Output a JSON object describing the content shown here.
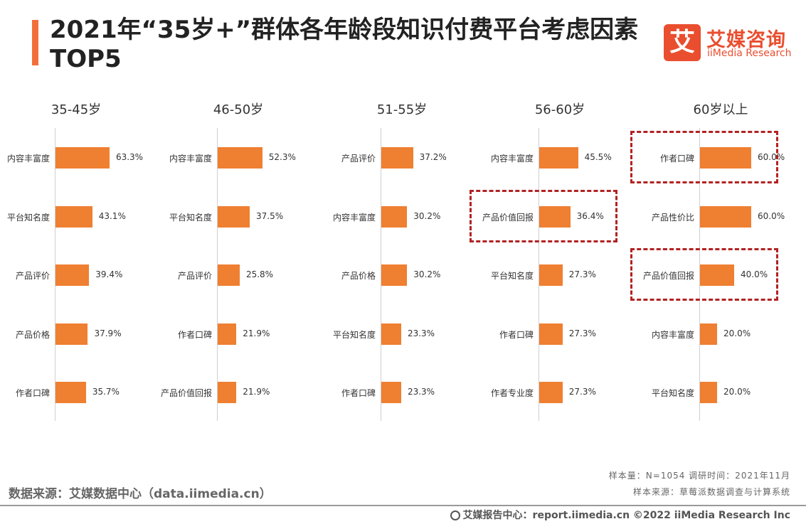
{
  "title": "2021年“35岁+”群体各年龄段知识付费平台考虑因素TOP5",
  "logo": {
    "mark": "艾",
    "cn": "艾媒咨询",
    "en": "iiMedia Research"
  },
  "chart_data": {
    "type": "bar",
    "unit": "%",
    "bar_color": "#ef7f31",
    "highlight_color": "#b22222",
    "panels": [
      {
        "title": "35-45岁",
        "categories": [
          "内容丰富度",
          "平台知名度",
          "产品评价",
          "产品价格",
          "作者口碑"
        ],
        "values": [
          63.3,
          43.1,
          39.4,
          37.9,
          35.7
        ],
        "labels": [
          "63.3%",
          "43.1%",
          "39.4%",
          "37.9%",
          "35.7%"
        ],
        "highlight": []
      },
      {
        "title": "46-50岁",
        "categories": [
          "内容丰富度",
          "平台知名度",
          "产品评价",
          "作者口碑",
          "产品价值回报"
        ],
        "values": [
          52.3,
          37.5,
          25.8,
          21.9,
          21.9
        ],
        "labels": [
          "52.3%",
          "37.5%",
          "25.8%",
          "21.9%",
          "21.9%"
        ],
        "highlight": []
      },
      {
        "title": "51-55岁",
        "categories": [
          "产品评价",
          "内容丰富度",
          "产品价格",
          "平台知名度",
          "作者口碑"
        ],
        "values": [
          37.2,
          30.2,
          30.2,
          23.3,
          23.3
        ],
        "labels": [
          "37.2%",
          "30.2%",
          "30.2%",
          "23.3%",
          "23.3%"
        ],
        "highlight": []
      },
      {
        "title": "56-60岁",
        "categories": [
          "内容丰富度",
          "产品价值回报",
          "平台知名度",
          "作者口碑",
          "作者专业度"
        ],
        "values": [
          45.5,
          36.4,
          27.3,
          27.3,
          27.3
        ],
        "labels": [
          "45.5%",
          "36.4%",
          "27.3%",
          "27.3%",
          "27.3%"
        ],
        "highlight": [
          1
        ]
      },
      {
        "title": "60岁以上",
        "categories": [
          "作者口碑",
          "产品性价比",
          "产品价值回报",
          "内容丰富度",
          "平台知名度"
        ],
        "values": [
          60.0,
          60.0,
          40.0,
          20.0,
          20.0
        ],
        "labels": [
          "60.0%",
          "60.0%",
          "40.0%",
          "20.0%",
          "20.0%"
        ],
        "highlight": [
          0,
          2
        ]
      }
    ]
  },
  "source": "数据来源：艾媒数据中心（data.iimedia.cn）",
  "sample_line1": "样本量：N=1054    调研时间：2021年11月",
  "sample_line2": "样本来源：草莓派数据调查与计算系统",
  "footer": "艾媒报告中心：report.iimedia.cn    ©2022  iiMedia Research  Inc"
}
